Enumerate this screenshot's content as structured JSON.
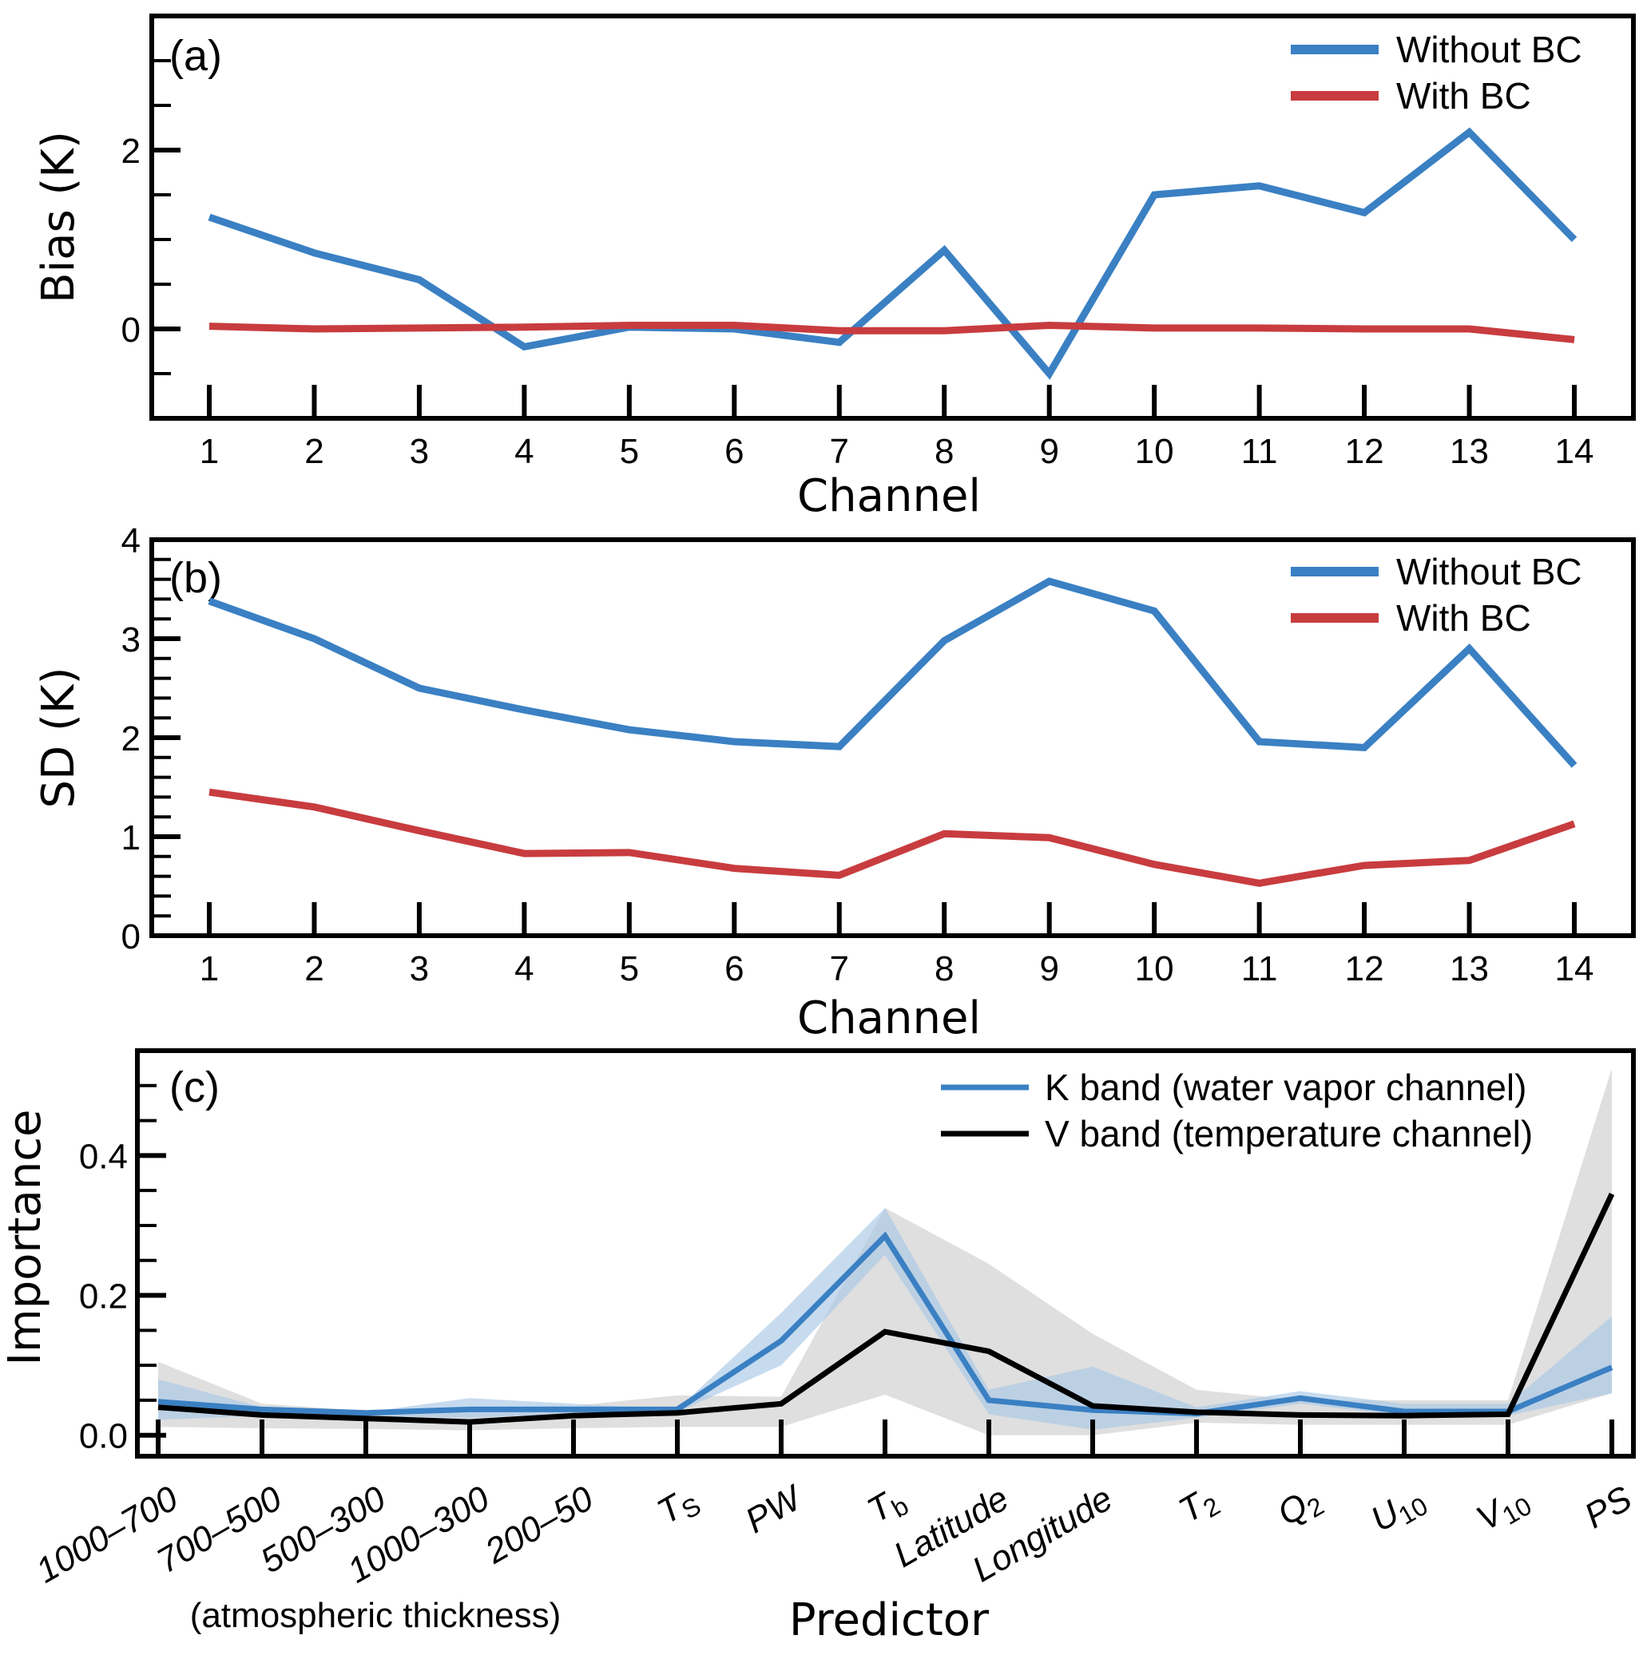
{
  "colors": {
    "without_bc": "#3a80c3",
    "with_bc": "#c83c3f",
    "k_band": "#3a80c3",
    "k_band_fill": "#a9c8e6",
    "v_band": "#000000",
    "v_band_fill": "#d4d4d4"
  },
  "chart_data": [
    {
      "panel": "(a)",
      "type": "line",
      "xlabel": "Channel",
      "ylabel": "Bias (K)",
      "x": [
        1,
        2,
        3,
        4,
        5,
        6,
        7,
        8,
        9,
        10,
        11,
        12,
        13,
        14
      ],
      "xticklabels": [
        "1",
        "2",
        "3",
        "4",
        "5",
        "6",
        "7",
        "8",
        "9",
        "10",
        "11",
        "12",
        "13",
        "14"
      ],
      "ylim": [
        -1.0,
        3.5
      ],
      "yticks": [
        0,
        2
      ],
      "yticklabels": [
        "0",
        "2"
      ],
      "yminor_step": 0.5,
      "grid": false,
      "legend": "top-right",
      "series": [
        {
          "name": "Without BC",
          "color_key": "without_bc",
          "values": [
            1.25,
            0.85,
            0.55,
            -0.2,
            0.02,
            0.0,
            -0.15,
            0.88,
            -0.5,
            1.5,
            1.6,
            1.3,
            2.2,
            1.0
          ]
        },
        {
          "name": "With BC",
          "color_key": "with_bc",
          "values": [
            0.03,
            0.0,
            0.01,
            0.02,
            0.04,
            0.04,
            -0.02,
            -0.02,
            0.04,
            0.01,
            0.01,
            0.0,
            0.0,
            -0.12
          ]
        }
      ]
    },
    {
      "panel": "(b)",
      "type": "line",
      "xlabel": "Channel",
      "ylabel": "SD (K)",
      "x": [
        1,
        2,
        3,
        4,
        5,
        6,
        7,
        8,
        9,
        10,
        11,
        12,
        13,
        14
      ],
      "xticklabels": [
        "1",
        "2",
        "3",
        "4",
        "5",
        "6",
        "7",
        "8",
        "9",
        "10",
        "11",
        "12",
        "13",
        "14"
      ],
      "ylim": [
        0,
        4
      ],
      "yticks": [
        0,
        1,
        2,
        3,
        4
      ],
      "yticklabels": [
        "0",
        "1",
        "2",
        "3",
        "4"
      ],
      "yminor_step": 0.2,
      "grid": false,
      "legend": "top-right",
      "series": [
        {
          "name": "Without BC",
          "color_key": "without_bc",
          "values": [
            3.38,
            3.0,
            2.5,
            2.28,
            2.08,
            1.96,
            1.91,
            2.98,
            3.58,
            3.28,
            1.96,
            1.9,
            2.9,
            1.72
          ]
        },
        {
          "name": "With BC",
          "color_key": "with_bc",
          "values": [
            1.45,
            1.3,
            1.06,
            0.83,
            0.84,
            0.68,
            0.61,
            1.03,
            0.99,
            0.72,
            0.53,
            0.71,
            0.76,
            1.13
          ]
        }
      ]
    },
    {
      "panel": "(c)",
      "type": "line",
      "xlabel": "Predictor",
      "ylabel": "Importance",
      "categories": [
        "1000–700",
        "700–500",
        "500–300",
        "1000–300",
        "200–50",
        "Ts",
        "PW",
        "Tb",
        "Latitude",
        "Longitude",
        "T2",
        "Q2",
        "U10",
        "V10",
        "PS"
      ],
      "category_labels": [
        {
          "main": "1000–700",
          "sub": ""
        },
        {
          "main": "700–500",
          "sub": ""
        },
        {
          "main": "500–300",
          "sub": ""
        },
        {
          "main": "1000–300",
          "sub": ""
        },
        {
          "main": "200–50",
          "sub": ""
        },
        {
          "main": "T",
          "sub": "S"
        },
        {
          "main": "PW",
          "sub": ""
        },
        {
          "main": "T",
          "sub": "b"
        },
        {
          "main": "Latitude",
          "sub": ""
        },
        {
          "main": "Longitude",
          "sub": ""
        },
        {
          "main": "T",
          "sub": "2"
        },
        {
          "main": "Q",
          "sub": "2"
        },
        {
          "main": "U",
          "sub": "10"
        },
        {
          "main": "V",
          "sub": "10"
        },
        {
          "main": "PS",
          "sub": ""
        }
      ],
      "annotation": "(atmospheric thickness)",
      "ylim": [
        -0.03,
        0.55
      ],
      "yticks": [
        0.0,
        0.2,
        0.4
      ],
      "yticklabels": [
        "0.0",
        "0.2",
        "0.4"
      ],
      "yminor_step": 0.05,
      "grid": false,
      "legend": "top-right",
      "series": [
        {
          "name": "K band (water vapor channel)",
          "color_key": "k_band",
          "fill_key": "k_band_fill",
          "values": [
            0.048,
            0.037,
            0.032,
            0.037,
            0.037,
            0.037,
            0.135,
            0.285,
            0.05,
            0.036,
            0.031,
            0.053,
            0.034,
            0.034,
            0.097
          ],
          "upper": [
            0.08,
            0.04,
            0.033,
            0.053,
            0.045,
            0.037,
            0.175,
            0.325,
            0.065,
            0.098,
            0.04,
            0.063,
            0.045,
            0.045,
            0.17
          ],
          "lower": [
            0.022,
            0.028,
            0.027,
            0.025,
            0.03,
            0.033,
            0.1,
            0.258,
            0.03,
            0.008,
            0.025,
            0.045,
            0.028,
            0.028,
            0.06
          ]
        },
        {
          "name": "V band (temperature channel)",
          "color_key": "v_band",
          "fill_key": "v_band_fill",
          "values": [
            0.04,
            0.029,
            0.024,
            0.019,
            0.028,
            0.032,
            0.045,
            0.148,
            0.12,
            0.042,
            0.033,
            0.029,
            0.028,
            0.03,
            0.345
          ],
          "upper": [
            0.105,
            0.045,
            0.035,
            0.04,
            0.042,
            0.057,
            0.055,
            0.325,
            0.245,
            0.145,
            0.065,
            0.05,
            0.05,
            0.05,
            0.525
          ],
          "lower": [
            0.012,
            0.01,
            0.009,
            0.007,
            0.01,
            0.012,
            0.012,
            0.058,
            0.0,
            0.0,
            0.018,
            0.015,
            0.015,
            0.015,
            0.06
          ]
        }
      ]
    }
  ],
  "labels": {
    "a": "(a)",
    "b": "(b)",
    "c": "(c)",
    "channel": "Channel",
    "predictor": "Predictor",
    "bias": "Bias (K)",
    "sd": "SD (K)",
    "importance": "Importance",
    "atm": "(atmospheric thickness)",
    "leg_without": "Without BC",
    "leg_with": "With BC",
    "leg_k": "K band (water vapor channel)",
    "leg_v": "V band (temperature channel)"
  }
}
